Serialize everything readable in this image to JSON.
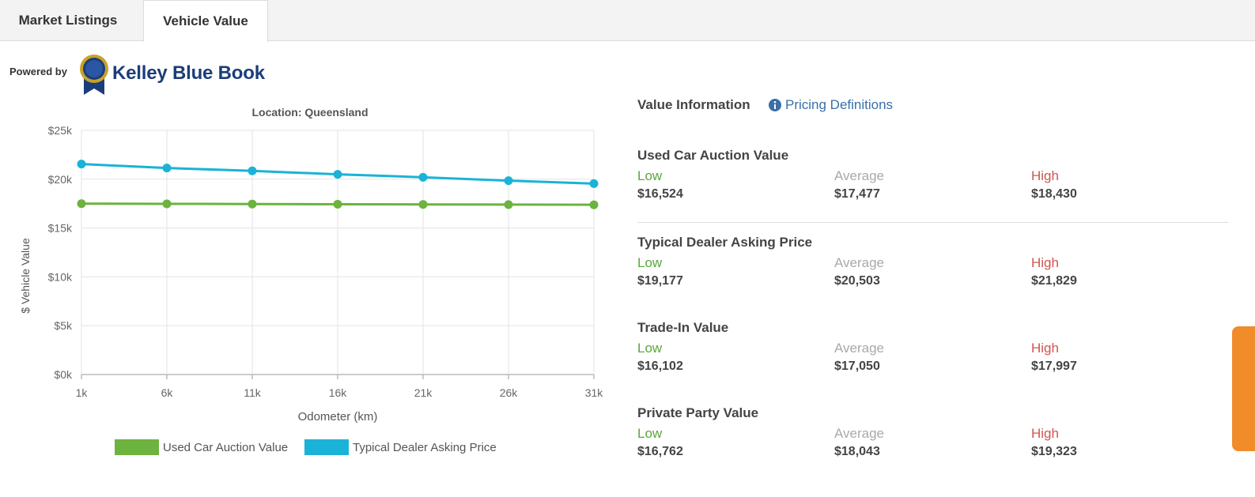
{
  "tabs": [
    {
      "label": "Market Listings",
      "active": false
    },
    {
      "label": "Vehicle Value",
      "active": true
    }
  ],
  "branding": {
    "powered_by": "Powered by",
    "name": "Kelley Blue Book"
  },
  "chart_data": {
    "type": "line",
    "title": "Location: Queensland",
    "xlabel": "Odometer (km)",
    "ylabel": "$ Vehicle Value",
    "categories": [
      "1k",
      "6k",
      "11k",
      "16k",
      "21k",
      "26k",
      "31k"
    ],
    "y_ticks": [
      "$0k",
      "$5k",
      "$10k",
      "$15k",
      "$20k",
      "$25k"
    ],
    "ylim": [
      0,
      25000
    ],
    "grid": true,
    "legend_position": "bottom",
    "series": [
      {
        "name": "Used Car Auction Value",
        "color": "#6cb33f",
        "values": [
          17500,
          17480,
          17460,
          17440,
          17420,
          17400,
          17380
        ]
      },
      {
        "name": "Typical Dealer Asking Price",
        "color": "#1ab3d7",
        "values": [
          21550,
          21150,
          20850,
          20500,
          20200,
          19850,
          19550
        ]
      }
    ]
  },
  "value_info": {
    "header": "Value Information",
    "link": "Pricing Definitions",
    "labels": {
      "low": "Low",
      "avg": "Average",
      "high": "High"
    },
    "sections": [
      {
        "title": "Used Car Auction Value",
        "low": "$16,524",
        "avg": "$17,477",
        "high": "$18,430"
      },
      {
        "title": "Typical Dealer Asking Price",
        "low": "$19,177",
        "avg": "$20,503",
        "high": "$21,829"
      },
      {
        "title": "Trade-In Value",
        "low": "$16,102",
        "avg": "$17,050",
        "high": "$17,997"
      },
      {
        "title": "Private Party Value",
        "low": "$16,762",
        "avg": "$18,043",
        "high": "$19,323"
      }
    ]
  },
  "colors": {
    "accent_link": "#3a6fa8",
    "low": "#5aa73c",
    "high": "#d0554f",
    "side_handle": "#f08c2a"
  }
}
